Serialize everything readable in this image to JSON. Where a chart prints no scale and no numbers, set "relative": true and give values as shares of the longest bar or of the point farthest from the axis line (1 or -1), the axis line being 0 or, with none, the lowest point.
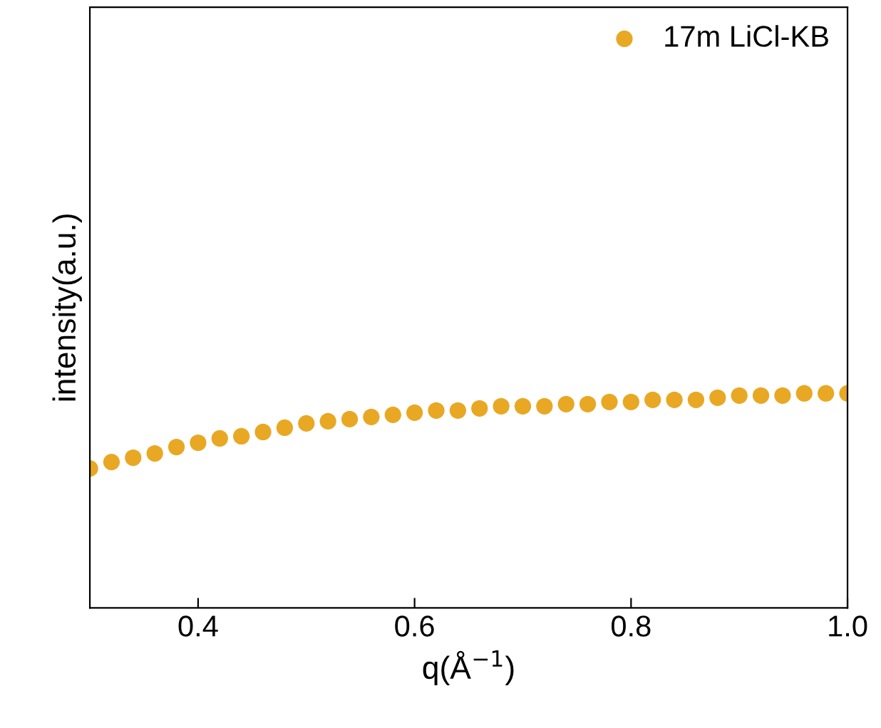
{
  "chart_data": {
    "type": "scatter",
    "relative": true,
    "xlabel": "q(Å$^{−1}$)",
    "ylabel": "intensity(a.u.)",
    "x": [
      0.3,
      0.32,
      0.34,
      0.36,
      0.38,
      0.4,
      0.42,
      0.44,
      0.46,
      0.48,
      0.5,
      0.52,
      0.54,
      0.56,
      0.58,
      0.6,
      0.62,
      0.64,
      0.66,
      0.68,
      0.7,
      0.72,
      0.74,
      0.76,
      0.78,
      0.8,
      0.82,
      0.84,
      0.86,
      0.88,
      0.9,
      0.92,
      0.94,
      0.96,
      0.98,
      1.0
    ],
    "series": [
      {
        "name": "17m LiCl-KB",
        "color": "#e8a823",
        "values": [
          0.65,
          0.68,
          0.7,
          0.72,
          0.75,
          0.77,
          0.79,
          0.8,
          0.82,
          0.84,
          0.86,
          0.87,
          0.88,
          0.89,
          0.9,
          0.91,
          0.92,
          0.92,
          0.93,
          0.94,
          0.94,
          0.94,
          0.95,
          0.95,
          0.96,
          0.96,
          0.97,
          0.97,
          0.97,
          0.98,
          0.99,
          0.99,
          0.99,
          1.0,
          1.0,
          1.0
        ]
      }
    ],
    "xlim": [
      0.3,
      1.0
    ],
    "xticks": [
      0.4,
      0.6,
      0.8,
      {
        "value": 1.0,
        "label": "1.0"
      }
    ],
    "marker": "circle",
    "legend": "top right",
    "grid": false
  }
}
